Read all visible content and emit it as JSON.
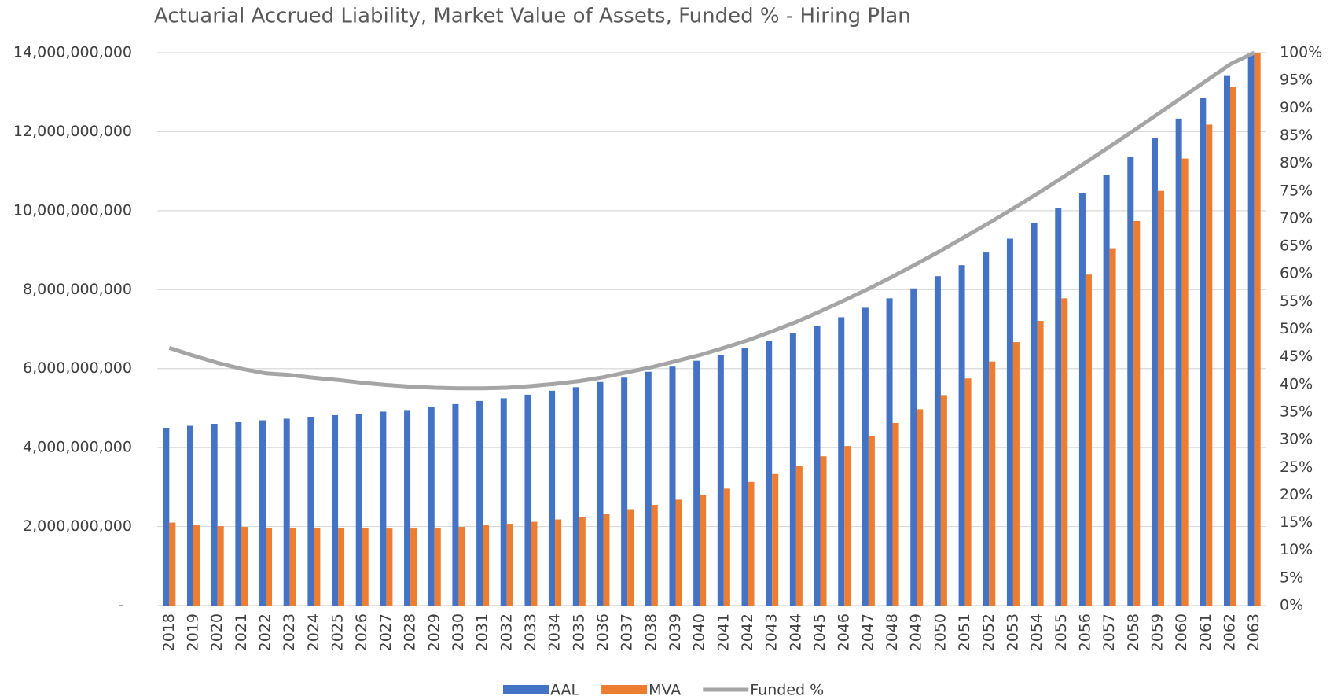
{
  "chart_data": {
    "type": "bar",
    "title": "Actuarial Accrued Liability, Market Value of Assets, Funded % - Hiring Plan",
    "categories": [
      "2018",
      "2019",
      "2020",
      "2021",
      "2022",
      "2023",
      "2024",
      "2025",
      "2026",
      "2027",
      "2028",
      "2029",
      "2030",
      "2031",
      "2032",
      "2033",
      "2034",
      "2035",
      "2036",
      "2037",
      "2038",
      "2039",
      "2040",
      "2041",
      "2042",
      "2043",
      "2044",
      "2045",
      "2046",
      "2047",
      "2048",
      "2049",
      "2050",
      "2051",
      "2052",
      "2053",
      "2054",
      "2055",
      "2056",
      "2057",
      "2058",
      "2059",
      "2060",
      "2061",
      "2062",
      "2063"
    ],
    "series": [
      {
        "name": "AAL",
        "color": "#4472c4",
        "values": [
          4500000000,
          4550000000,
          4600000000,
          4650000000,
          4690000000,
          4730000000,
          4780000000,
          4820000000,
          4860000000,
          4910000000,
          4950000000,
          5030000000,
          5100000000,
          5180000000,
          5250000000,
          5340000000,
          5440000000,
          5530000000,
          5660000000,
          5770000000,
          5920000000,
          6050000000,
          6200000000,
          6350000000,
          6520000000,
          6700000000,
          6890000000,
          7080000000,
          7300000000,
          7540000000,
          7780000000,
          8030000000,
          8340000000,
          8620000000,
          8940000000,
          9290000000,
          9680000000,
          10060000000,
          10450000000,
          10900000000,
          11360000000,
          11840000000,
          12330000000,
          12850000000,
          13410000000,
          14000000000
        ]
      },
      {
        "name": "MVA",
        "color": "#ed7d31",
        "values": [
          2100000000,
          2050000000,
          2010000000,
          1990000000,
          1970000000,
          1970000000,
          1970000000,
          1970000000,
          1970000000,
          1950000000,
          1950000000,
          1970000000,
          1990000000,
          2030000000,
          2070000000,
          2120000000,
          2180000000,
          2250000000,
          2330000000,
          2440000000,
          2550000000,
          2680000000,
          2810000000,
          2960000000,
          3130000000,
          3330000000,
          3540000000,
          3780000000,
          4040000000,
          4300000000,
          4620000000,
          4970000000,
          5330000000,
          5750000000,
          6180000000,
          6670000000,
          7210000000,
          7780000000,
          8380000000,
          9050000000,
          9740000000,
          10500000000,
          11320000000,
          12180000000,
          13130000000,
          14000000000
        ]
      },
      {
        "name": "Funded %",
        "color": "#a5a5a5",
        "type": "line",
        "axis": "y2",
        "values": [
          46.6,
          45.2,
          43.9,
          42.8,
          42.0,
          41.7,
          41.2,
          40.8,
          40.3,
          39.9,
          39.6,
          39.4,
          39.3,
          39.3,
          39.4,
          39.7,
          40.1,
          40.6,
          41.3,
          42.2,
          43.1,
          44.2,
          45.3,
          46.6,
          48.0,
          49.6,
          51.3,
          53.2,
          55.2,
          57.3,
          59.5,
          61.8,
          64.2,
          66.7,
          69.2,
          71.8,
          74.5,
          77.3,
          80.1,
          83.0,
          85.9,
          88.9,
          91.9,
          94.9,
          97.9,
          100
        ]
      }
    ],
    "ylim": [
      0,
      14000000000
    ],
    "yticks": [
      {
        "value": 0,
        "label": "-"
      },
      {
        "value": 2000000000,
        "label": "2,000,000,000"
      },
      {
        "value": 4000000000,
        "label": "4,000,000,000"
      },
      {
        "value": 6000000000,
        "label": "6,000,000,000"
      },
      {
        "value": 8000000000,
        "label": "8,000,000,000"
      },
      {
        "value": 10000000000,
        "label": "10,000,000,000"
      },
      {
        "value": 12000000000,
        "label": "12,000,000,000"
      },
      {
        "value": 14000000000,
        "label": "14,000,000,000"
      }
    ],
    "y2lim": [
      0,
      100
    ],
    "y2ticks": [
      {
        "value": 0,
        "label": "0%"
      },
      {
        "value": 5,
        "label": "5%"
      },
      {
        "value": 10,
        "label": "10%"
      },
      {
        "value": 15,
        "label": "15%"
      },
      {
        "value": 20,
        "label": "20%"
      },
      {
        "value": 25,
        "label": "25%"
      },
      {
        "value": 30,
        "label": "30%"
      },
      {
        "value": 35,
        "label": "35%"
      },
      {
        "value": 40,
        "label": "40%"
      },
      {
        "value": 45,
        "label": "45%"
      },
      {
        "value": 50,
        "label": "50%"
      },
      {
        "value": 55,
        "label": "55%"
      },
      {
        "value": 60,
        "label": "60%"
      },
      {
        "value": 65,
        "label": "65%"
      },
      {
        "value": 70,
        "label": "70%"
      },
      {
        "value": 75,
        "label": "75%"
      },
      {
        "value": 80,
        "label": "80%"
      },
      {
        "value": 85,
        "label": "85%"
      },
      {
        "value": 90,
        "label": "90%"
      },
      {
        "value": 95,
        "label": "95%"
      },
      {
        "value": 100,
        "label": "100%"
      }
    ],
    "grid": true,
    "legend": "bottom"
  }
}
